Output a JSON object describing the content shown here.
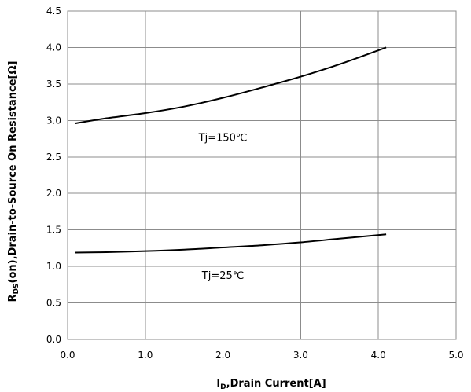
{
  "chart_data": {
    "type": "line",
    "xlabel_main": "I",
    "xlabel_sub": "D",
    "xlabel_rest": ",Drain Current[A]",
    "ylabel_main": "R",
    "ylabel_sub": "DS",
    "ylabel_rest": "(on),Drain-to-Source On  Resistance[Ω]",
    "xlim": [
      0,
      5
    ],
    "ylim": [
      0,
      4.5
    ],
    "x_ticks": [
      "0.0",
      "1.0",
      "2.0",
      "3.0",
      "4.0",
      "5.0"
    ],
    "y_ticks": [
      "0.0",
      "0.5",
      "1.0",
      "1.5",
      "2.0",
      "2.5",
      "3.0",
      "3.5",
      "4.0",
      "4.5"
    ],
    "grid": true,
    "series": [
      {
        "label": "Tj=150℃",
        "label_at": [
          2.0,
          2.72
        ],
        "points": [
          [
            0.1,
            2.96
          ],
          [
            0.5,
            3.03
          ],
          [
            1.0,
            3.1
          ],
          [
            1.5,
            3.19
          ],
          [
            2.0,
            3.31
          ],
          [
            2.5,
            3.45
          ],
          [
            3.0,
            3.6
          ],
          [
            3.5,
            3.77
          ],
          [
            4.1,
            4.0
          ]
        ]
      },
      {
        "label": "Tj=25℃",
        "label_at": [
          2.0,
          0.83
        ],
        "points": [
          [
            0.1,
            1.19
          ],
          [
            0.5,
            1.195
          ],
          [
            1.0,
            1.21
          ],
          [
            1.5,
            1.23
          ],
          [
            2.0,
            1.26
          ],
          [
            2.5,
            1.29
          ],
          [
            3.0,
            1.33
          ],
          [
            3.5,
            1.38
          ],
          [
            4.1,
            1.44
          ]
        ]
      }
    ]
  }
}
